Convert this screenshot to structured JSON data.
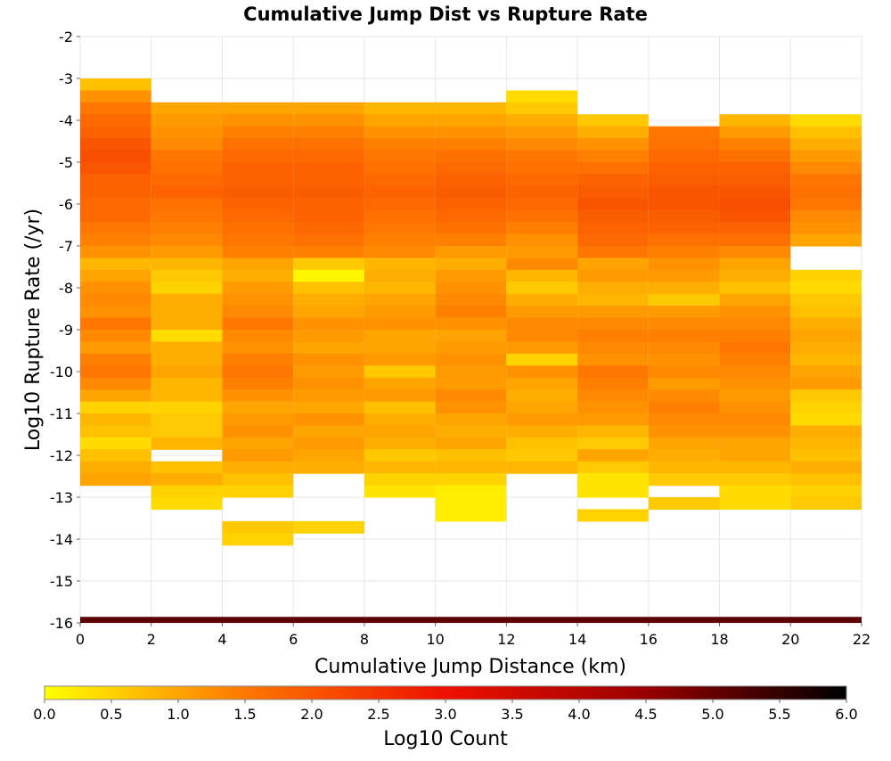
{
  "chart_data": {
    "type": "heatmap",
    "title": "Cumulative Jump Dist vs Rupture Rate",
    "xlabel": "Cumulative Jump Distance (km)",
    "ylabel": "Log10 Rupture Rate (/yr)",
    "xlim": [
      0,
      22
    ],
    "ylim": [
      -16,
      -2
    ],
    "x_ticks": [
      "0",
      "2",
      "4",
      "6",
      "8",
      "10",
      "12",
      "14",
      "16",
      "18",
      "20",
      "22"
    ],
    "y_ticks": [
      "-2",
      "-3",
      "-4",
      "-5",
      "-6",
      "-7",
      "-8",
      "-9",
      "-10",
      "-11",
      "-12",
      "-13",
      "-14",
      "-15",
      "-16"
    ],
    "grid": true,
    "x_bin_width": 2,
    "y_bin_height": 0.2857,
    "columns": [
      {
        "x_start": 0,
        "y_top": -3.0,
        "cells": [
          0.7,
          1.2,
          1.5,
          1.7,
          1.8,
          2.0,
          2.1,
          2.0,
          1.8,
          1.8,
          1.7,
          1.7,
          1.5,
          1.4,
          1.2,
          0.8,
          1.0,
          1.2,
          1.3,
          1.2,
          1.5,
          1.3,
          1.1,
          1.4,
          1.5,
          1.3,
          1.0,
          0.5,
          0.8,
          0.7,
          0.4,
          0.7,
          0.9,
          1.0
        ]
      },
      {
        "x_start": 2,
        "y_top": -3.571,
        "cells": [
          1.0,
          1.1,
          1.2,
          1.3,
          1.5,
          1.6,
          1.7,
          1.8,
          1.6,
          1.5,
          1.4,
          1.3,
          1.1,
          0.8,
          0.6,
          0.5,
          0.9,
          0.9,
          0.9,
          0.4,
          0.9,
          0.9,
          1.0,
          0.8,
          0.8,
          0.5,
          0.6,
          0.6,
          0.8,
          null,
          0.7,
          0.9,
          0.5,
          0.4
        ]
      },
      {
        "x_start": 4,
        "y_top": -3.571,
        "cells": [
          1.0,
          1.2,
          1.4,
          1.6,
          1.7,
          1.8,
          1.8,
          1.9,
          1.8,
          1.7,
          1.6,
          1.5,
          1.4,
          1.0,
          0.9,
          1.1,
          1.2,
          1.3,
          1.5,
          1.3,
          1.2,
          1.4,
          1.5,
          1.4,
          1.2,
          1.0,
          1.1,
          1.2,
          1.0,
          1.1,
          0.9,
          0.7,
          0.5,
          null,
          null,
          0.6,
          0.5
        ]
      },
      {
        "x_start": 6,
        "y_top": -3.571,
        "cells": [
          1.0,
          1.2,
          1.4,
          1.6,
          1.7,
          1.8,
          1.8,
          1.9,
          1.8,
          1.8,
          1.7,
          1.6,
          1.4,
          0.6,
          0.1,
          0.7,
          0.9,
          1.0,
          1.2,
          1.1,
          1.0,
          1.2,
          1.1,
          1.2,
          1.1,
          1.0,
          1.2,
          1.0,
          1.1,
          1.0,
          0.9,
          null,
          null,
          null,
          null,
          0.5
        ]
      },
      {
        "x_start": 8,
        "y_top": -3.571,
        "cells": [
          0.8,
          1.0,
          1.2,
          1.4,
          1.5,
          1.6,
          1.7,
          1.8,
          1.7,
          1.6,
          1.5,
          1.4,
          1.3,
          0.8,
          0.9,
          0.8,
          1.0,
          1.1,
          1.2,
          1.0,
          1.0,
          1.1,
          0.6,
          1.0,
          1.1,
          0.7,
          0.9,
          1.0,
          0.9,
          0.6,
          0.8,
          0.5,
          0.3
        ]
      },
      {
        "x_start": 10,
        "y_top": -3.571,
        "cells": [
          0.8,
          1.0,
          1.2,
          1.4,
          1.6,
          1.7,
          1.8,
          1.9,
          1.8,
          1.7,
          1.6,
          1.4,
          1.1,
          0.9,
          1.1,
          1.2,
          1.3,
          1.4,
          1.2,
          1.0,
          1.1,
          1.2,
          1.1,
          1.1,
          1.3,
          1.2,
          1.0,
          0.9,
          1.0,
          0.7,
          0.8,
          0.5,
          0.2,
          0.2,
          0.2
        ]
      },
      {
        "x_start": 12,
        "y_top": -3.286,
        "cells": [
          0.4,
          0.6,
          0.9,
          1.1,
          1.3,
          1.5,
          1.6,
          1.7,
          1.8,
          1.7,
          1.6,
          1.4,
          1.2,
          1.1,
          1.3,
          0.8,
          0.6,
          0.9,
          1.1,
          1.3,
          1.3,
          1.1,
          0.5,
          1.2,
          1.0,
          0.9,
          1.0,
          1.1,
          0.9,
          0.7,
          0.6,
          0.8
        ]
      },
      {
        "x_start": 14,
        "y_top": -3.857,
        "cells": [
          0.6,
          0.9,
          1.2,
          1.4,
          1.6,
          1.8,
          1.9,
          2.0,
          1.9,
          1.8,
          1.7,
          1.5,
          1.0,
          1.1,
          0.9,
          0.8,
          1.1,
          1.3,
          1.4,
          1.3,
          1.2,
          1.5,
          1.4,
          1.3,
          1.2,
          1.1,
          0.8,
          0.6,
          1.0,
          0.6,
          0.3,
          0.3,
          null,
          0.5
        ]
      },
      {
        "x_start": 16,
        "y_top": -4.143,
        "cells": [
          1.5,
          1.6,
          1.7,
          1.8,
          1.9,
          2.0,
          2.0,
          1.9,
          1.8,
          1.6,
          1.4,
          1.2,
          1.1,
          0.9,
          0.6,
          1.1,
          1.3,
          1.4,
          1.3,
          1.2,
          1.3,
          1.1,
          1.3,
          1.4,
          1.3,
          1.2,
          1.0,
          0.9,
          0.8,
          0.6,
          null,
          0.6
        ]
      },
      {
        "x_start": 18,
        "y_top": -3.857,
        "cells": [
          0.8,
          1.1,
          1.4,
          1.6,
          1.8,
          1.9,
          2.0,
          2.1,
          2.0,
          1.8,
          1.6,
          1.3,
          1.0,
          0.9,
          0.7,
          1.0,
          1.2,
          1.3,
          1.4,
          1.5,
          1.4,
          1.3,
          1.2,
          1.1,
          1.2,
          1.3,
          1.2,
          1.0,
          1.0,
          0.8,
          0.6,
          0.4,
          0.4
        ]
      },
      {
        "x_start": 20,
        "y_top": -3.857,
        "cells": [
          0.4,
          0.7,
          0.9,
          1.1,
          1.3,
          1.5,
          1.6,
          1.5,
          1.3,
          1.2,
          1.0,
          null,
          null,
          0.5,
          0.4,
          0.6,
          0.7,
          0.9,
          1.0,
          0.9,
          0.8,
          1.0,
          1.1,
          0.6,
          0.5,
          0.4,
          0.9,
          0.8,
          0.7,
          0.9,
          0.7,
          0.5,
          0.6
        ]
      }
    ],
    "bottom_row": {
      "y_start": -16.0,
      "y_end": -15.857,
      "x_start": 0,
      "x_end": 22,
      "value": 5.1
    },
    "colorbar": {
      "label": "Log10 Count",
      "min": 0.0,
      "max": 6.0,
      "ticks": [
        "0.0",
        "0.5",
        "1.0",
        "1.5",
        "2.0",
        "2.5",
        "3.0",
        "3.5",
        "4.0",
        "4.5",
        "5.0",
        "5.5",
        "6.0"
      ],
      "stops": [
        "#ffff00",
        "#ff7700",
        "#ee1100",
        "#990000",
        "#000000"
      ]
    }
  }
}
